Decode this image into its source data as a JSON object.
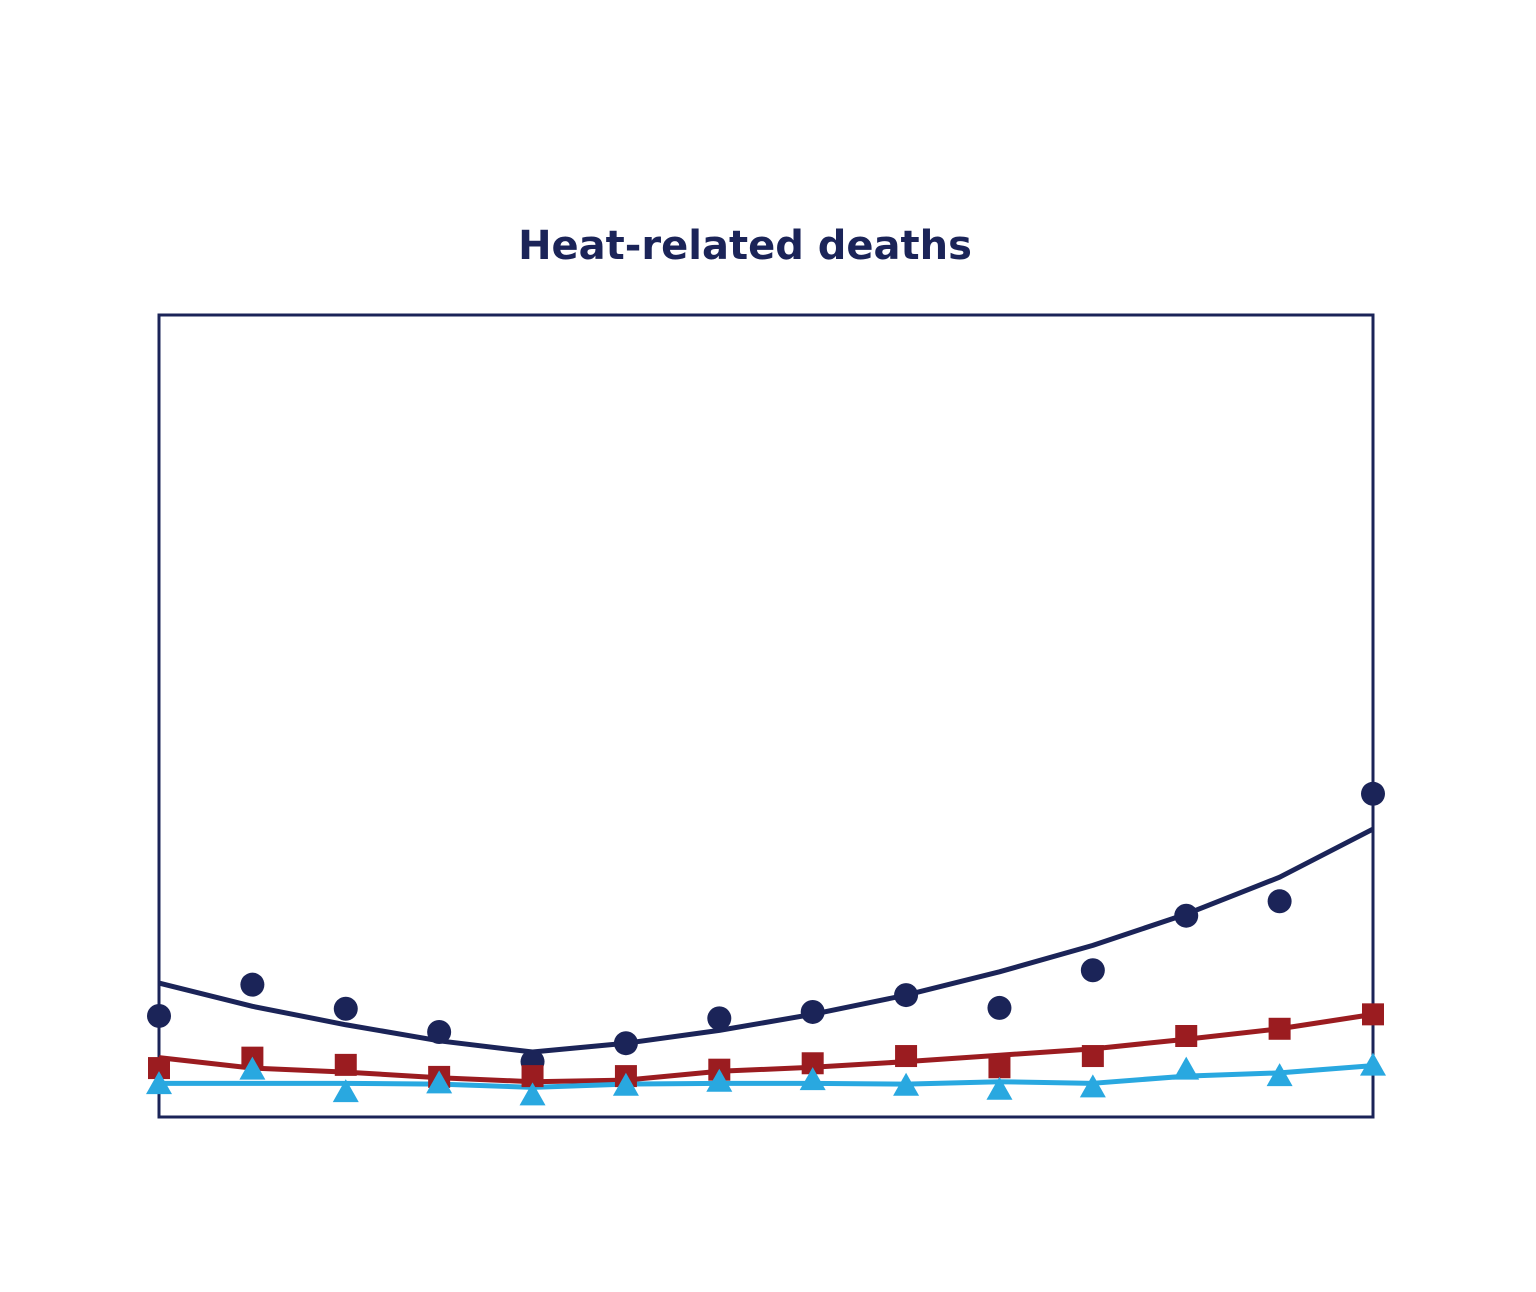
{
  "chart_data": {
    "type": "line",
    "title": "Heat-related deaths",
    "categories": [
      null,
      null,
      null,
      null,
      null,
      null,
      null,
      null,
      null,
      null,
      null,
      null,
      null,
      null
    ],
    "ylim": [
      0,
      100
    ],
    "grid": false,
    "series": [
      {
        "color": "#1b2458",
        "marker": "circle",
        "values": [
          12.6,
          16.5,
          13.5,
          10.6,
          6.9,
          9.2,
          12.3,
          13.1,
          15.2,
          13.6,
          18.3,
          25.1,
          26.9,
          40.3
        ],
        "line": [
          16.7,
          13.8,
          11.5,
          9.5,
          8.1,
          9.2,
          10.8,
          12.8,
          15.2,
          18.1,
          21.4,
          25.3,
          29.9,
          35.9
        ]
      },
      {
        "color": "#9b1c20",
        "marker": "square",
        "values": [
          6.1,
          7.4,
          6.5,
          5.0,
          5.1,
          5.1,
          5.9,
          6.7,
          7.6,
          6.2,
          7.6,
          10.1,
          11.0,
          12.8
        ],
        "line": [
          7.4,
          6.1,
          5.6,
          4.9,
          4.4,
          4.6,
          5.7,
          6.2,
          6.9,
          7.7,
          8.5,
          9.7,
          11.0,
          12.8
        ]
      },
      {
        "color": "#29a8e0",
        "marker": "triangle",
        "values": [
          4.1,
          5.9,
          3.1,
          4.2,
          2.7,
          3.9,
          4.4,
          4.6,
          3.9,
          3.4,
          3.7,
          5.9,
          5.1,
          6.4
        ],
        "line": [
          4.2,
          4.2,
          4.2,
          4.1,
          3.7,
          4.1,
          4.2,
          4.2,
          4.1,
          4.4,
          4.2,
          5.1,
          5.5,
          6.4
        ]
      }
    ]
  }
}
